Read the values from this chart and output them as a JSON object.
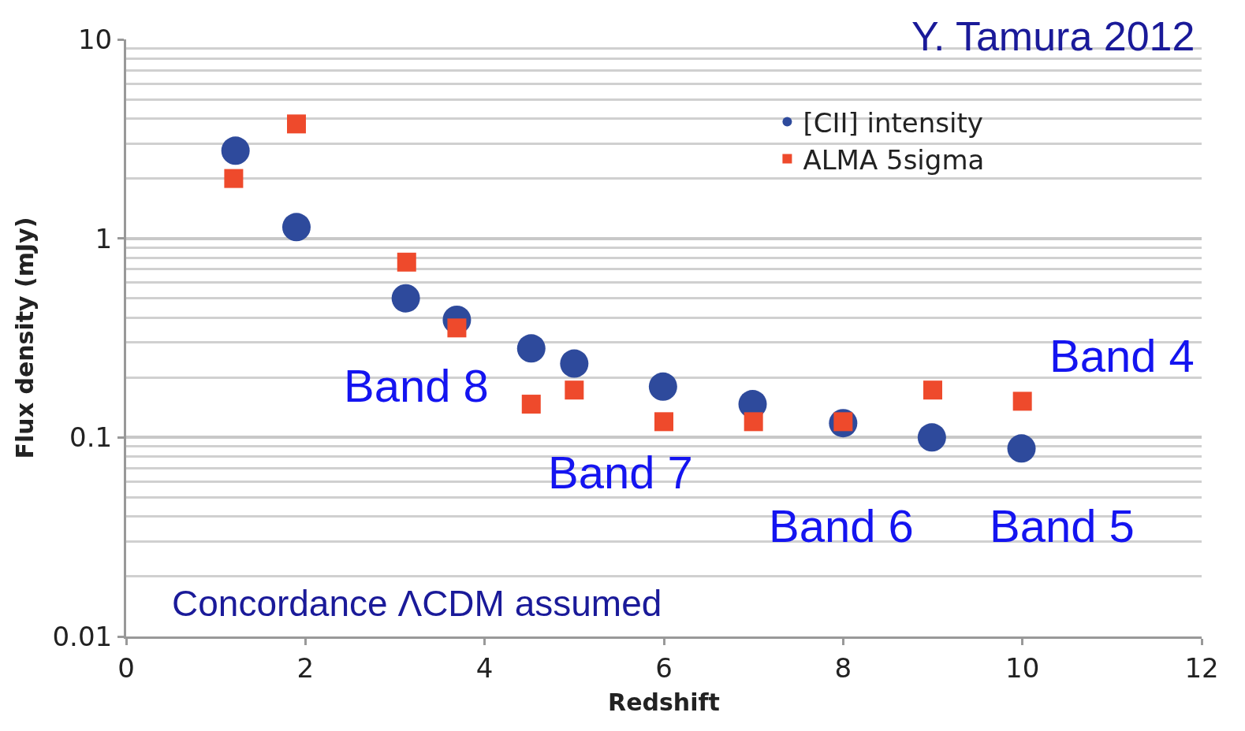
{
  "chart_data": {
    "type": "scatter",
    "xlabel": "Redshift",
    "ylabel": "Flux density (mJy)",
    "xlim": [
      0,
      12
    ],
    "xticks": [
      0,
      2,
      4,
      6,
      8,
      10,
      12
    ],
    "ylim": [
      0.01,
      10
    ],
    "yticks": [
      0.01,
      0.1,
      1,
      10
    ],
    "log": "y",
    "grid": "y",
    "legend": "top right",
    "series": [
      {
        "name": "[CII] intensity",
        "color": "#2e4a9c",
        "marker": "circle",
        "x": [
          1.22,
          1.9,
          3.12,
          3.69,
          4.52,
          5.0,
          5.99,
          6.99,
          8.0,
          8.99,
          9.99
        ],
        "values": [
          2.76,
          1.14,
          0.5,
          0.39,
          0.28,
          0.235,
          0.18,
          0.147,
          0.118,
          0.1,
          0.088
        ]
      },
      {
        "name": "ALMA 5sigma",
        "color": "#ee4a2c",
        "marker": "square",
        "x": [
          1.2,
          1.9,
          3.13,
          3.69,
          4.52,
          5.0,
          6.0,
          7.0,
          8.0,
          9.0,
          10.0
        ],
        "values": [
          2.0,
          3.76,
          0.76,
          0.355,
          0.147,
          0.173,
          0.12,
          0.12,
          0.12,
          0.173,
          0.152
        ]
      }
    ],
    "annotations": [
      "Y. Tamura 2012",
      "Band 8",
      "Band 7",
      "Band 6",
      "Band 5",
      "Band 4",
      "Concordance ΛCDM assumed"
    ]
  }
}
